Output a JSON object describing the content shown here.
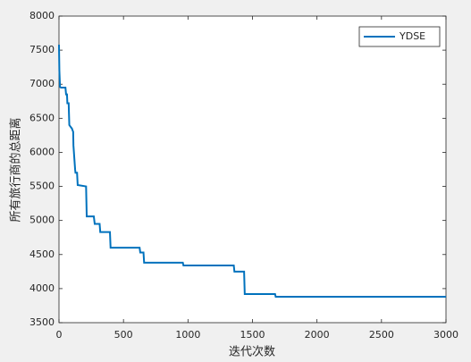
{
  "chart_data": {
    "type": "line",
    "xlabel": "迭代次数",
    "ylabel": "所有旅行商的总距离",
    "x": [
      0,
      3,
      8,
      15,
      50,
      55,
      62,
      65,
      75,
      80,
      100,
      110,
      112,
      125,
      128,
      140,
      145,
      210,
      215,
      270,
      277,
      315,
      320,
      395,
      400,
      625,
      630,
      655,
      660,
      960,
      965,
      1355,
      1360,
      1435,
      1440,
      1675,
      1680,
      3000
    ],
    "series": [
      {
        "name": "YDSE",
        "color": "#0072bd",
        "values": [
          7580,
          7200,
          6960,
          6950,
          6950,
          6850,
          6850,
          6720,
          6720,
          6400,
          6350,
          6300,
          6100,
          5750,
          5700,
          5700,
          5520,
          5500,
          5060,
          5060,
          4950,
          4950,
          4830,
          4830,
          4600,
          4600,
          4530,
          4530,
          4380,
          4380,
          4340,
          4340,
          4250,
          4250,
          3920,
          3920,
          3880,
          3880
        ]
      }
    ],
    "xlim": [
      0,
      3000
    ],
    "xticks": [
      0,
      500,
      1000,
      1500,
      2000,
      2500,
      3000
    ],
    "ylim": [
      3500,
      8000
    ],
    "yticks": [
      3500,
      4000,
      4500,
      5000,
      5500,
      6000,
      6500,
      7000,
      7500,
      8000
    ],
    "grid": false,
    "legend": "northeast"
  }
}
